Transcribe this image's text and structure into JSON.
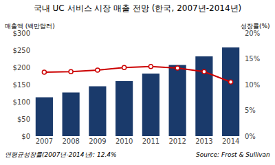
{
  "chart_data": {
    "type": "bar",
    "title": "국내 UC 서비스 시장 매출 전망 (한국, 2007년-2014년)",
    "categories": [
      "2007",
      "2008",
      "2009",
      "2010",
      "2011",
      "2012",
      "2013",
      "2014"
    ],
    "series": [
      {
        "type": "bar",
        "color": "#1a3a6b",
        "values": [
          113,
          127,
          145,
          160,
          182,
          207,
          232,
          258
        ]
      },
      {
        "type": "line",
        "color": "#cc0000",
        "marker": "circle",
        "axis": "y2",
        "values": [
          12.4,
          12.5,
          12.8,
          13.3,
          13.5,
          13.2,
          12.5,
          10.5
        ]
      }
    ],
    "ylabel": "매출액 (백만달러)",
    "y2label": "성장률(%)",
    "ylim": [
      0,
      300
    ],
    "yticks": [
      {
        "value": 0,
        "label": "$0"
      },
      {
        "value": 50,
        "label": "$50"
      },
      {
        "value": 100,
        "label": "$100"
      },
      {
        "value": 150,
        "label": "$150"
      },
      {
        "value": 200,
        "label": "$200"
      },
      {
        "value": 250,
        "label": "$250"
      },
      {
        "value": 300,
        "label": "$300"
      }
    ],
    "y2lim": [
      0,
      20
    ],
    "y2ticks": [
      {
        "value": 0,
        "label": "0%"
      },
      {
        "value": 5,
        "label": "5%"
      },
      {
        "value": 10,
        "label": "10%"
      },
      {
        "value": 15,
        "label": "15%"
      },
      {
        "value": 20,
        "label": "20%"
      }
    ],
    "annotations": [
      "연평균성장률(2007년-2014년): 12.4%",
      "Source: Frost & Sullivan"
    ],
    "grid": false
  }
}
